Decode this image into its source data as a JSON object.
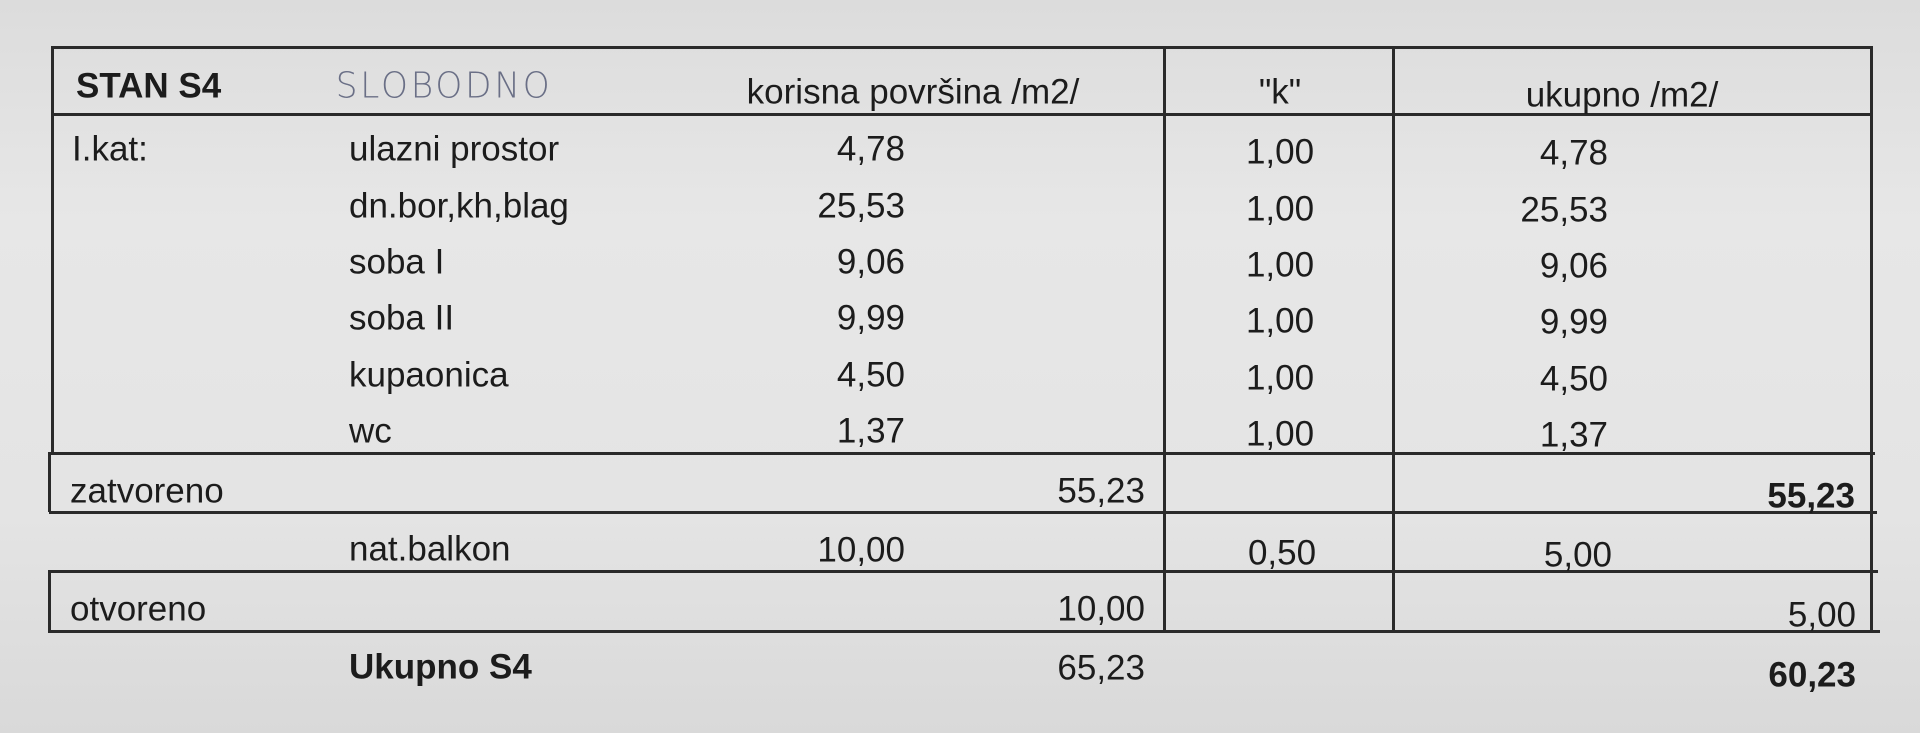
{
  "header": {
    "title": "STAN S4",
    "handwritten_note": "SLOBODNO",
    "col_area": "korisna površina /m2/",
    "col_k": "\"k\"",
    "col_total": "ukupno /m2/"
  },
  "floor_label": "I.kat:",
  "rooms": [
    {
      "name": "ulazni prostor",
      "area": "4,78",
      "k": "1,00",
      "total": "4,78"
    },
    {
      "name": "dn.bor,kh,blag",
      "area": "25,53",
      "k": "1,00",
      "total": "25,53"
    },
    {
      "name": "soba I",
      "area": "9,06",
      "k": "1,00",
      "total": "9,06"
    },
    {
      "name": "soba II",
      "area": "9,99",
      "k": "1,00",
      "total": "9,99"
    },
    {
      "name": "kupaonica",
      "area": "4,50",
      "k": "1,00",
      "total": "4,50"
    },
    {
      "name": "wc",
      "area": "1,37",
      "k": "1,00",
      "total": "1,37"
    }
  ],
  "closed": {
    "label": "zatvoreno",
    "area": "55,23",
    "total": "55,23"
  },
  "balcony": {
    "name": "nat.balkon",
    "area": "10,00",
    "k": "0,50",
    "total": "5,00"
  },
  "open": {
    "label": "otvoreno",
    "area": "10,00",
    "total": "5,00"
  },
  "grand_total": {
    "label": "Ukupno S4",
    "area": "65,23",
    "total": "60,23"
  }
}
